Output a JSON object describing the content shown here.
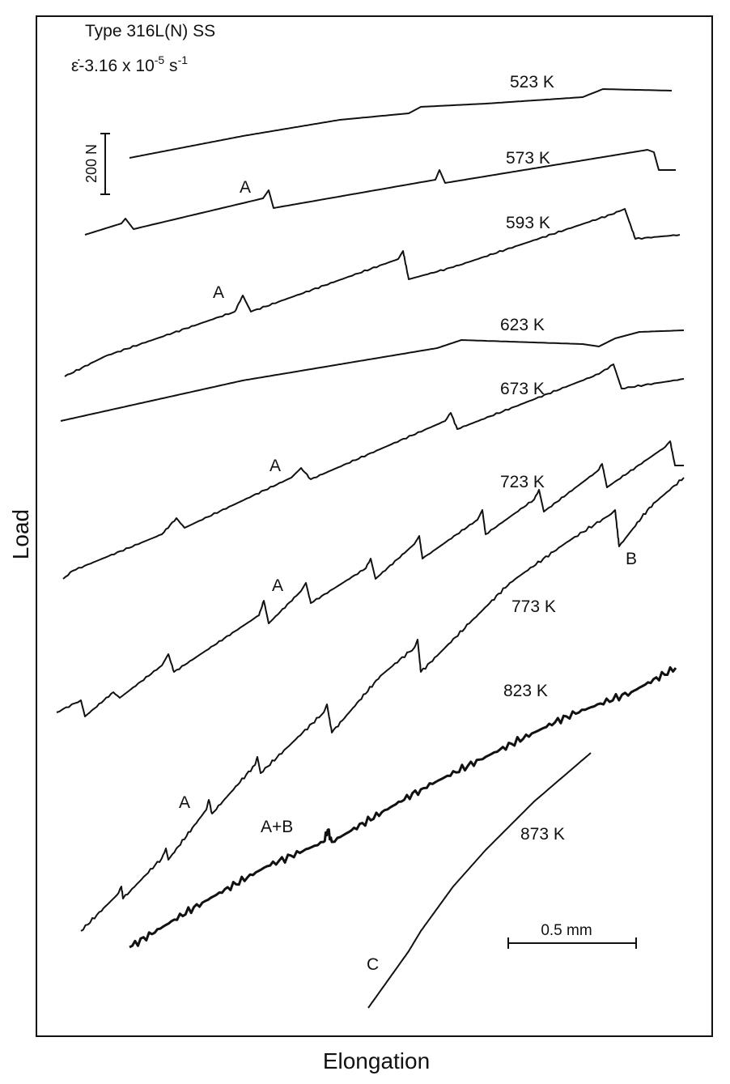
{
  "header": {
    "title": "Type 316L(N) SS",
    "strain_rate": {
      "base": "ε̇-3.16 x 10",
      "exp": "-5",
      "unit": " s",
      "unit_exp": "-1"
    }
  },
  "axes": {
    "x_label": "Elongation",
    "y_label": "Load"
  },
  "scale_bars": {
    "load": "200 N",
    "elongation": "0.5 mm"
  },
  "curves": [
    {
      "label": "523 K"
    },
    {
      "label": "573 K"
    },
    {
      "label": "593 K"
    },
    {
      "label": "623 K"
    },
    {
      "label": "673 K"
    },
    {
      "label": "723 K"
    },
    {
      "label": "773 K"
    },
    {
      "label": "823 K"
    },
    {
      "label": "873 K"
    }
  ],
  "annotations": [
    "A",
    "A",
    "A",
    "A",
    "B",
    "A",
    "A+B",
    "C"
  ]
}
